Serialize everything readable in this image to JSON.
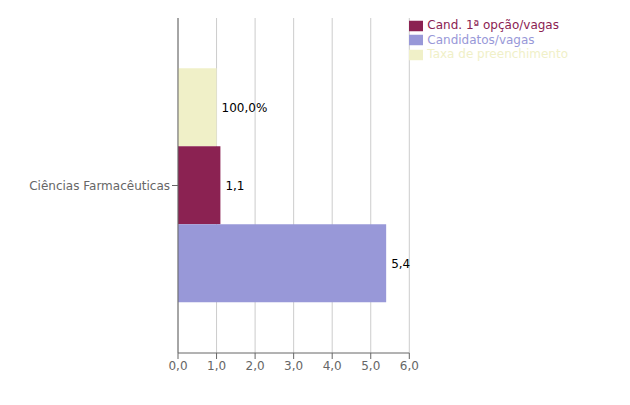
{
  "chart_data": {
    "type": "bar",
    "orientation": "horizontal",
    "categories": [
      "Ciências Farmacêuticas"
    ],
    "series": [
      {
        "name": "Taxa de preenchimento",
        "color": "#f0f0c8",
        "values": [
          1.0
        ],
        "value_labels": [
          "100,0%"
        ]
      },
      {
        "name": "Cand. 1ª opção/vagas",
        "color": "#8b2252",
        "values": [
          1.1
        ],
        "value_labels": [
          "1,1"
        ]
      },
      {
        "name": "Candidatos/vagas",
        "color": "#9898d8",
        "values": [
          5.4
        ],
        "value_labels": [
          "5,4"
        ]
      }
    ],
    "xlim": [
      0,
      6.0
    ],
    "xticks": [
      {
        "value": 0.0,
        "label": "0,0"
      },
      {
        "value": 1.0,
        "label": "1,0"
      },
      {
        "value": 2.0,
        "label": "2,0"
      },
      {
        "value": 3.0,
        "label": "3,0"
      },
      {
        "value": 4.0,
        "label": "4,0"
      },
      {
        "value": 5.0,
        "label": "5,0"
      },
      {
        "value": 6.0,
        "label": "6,0"
      }
    ],
    "grid": true,
    "legend": "upper right",
    "data_labels": true
  }
}
